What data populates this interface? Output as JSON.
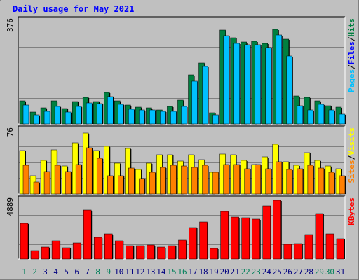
{
  "chart_data": {
    "type": "bar",
    "title": "Daily usage for May 2021",
    "x_labels": [
      "1",
      "2",
      "3",
      "4",
      "5",
      "6",
      "7",
      "8",
      "9",
      "10",
      "11",
      "12",
      "13",
      "14",
      "15",
      "16",
      "17",
      "18",
      "19",
      "20",
      "21",
      "22",
      "23",
      "24",
      "25",
      "26",
      "27",
      "28",
      "29",
      "30",
      "31"
    ],
    "weekend_days": [
      1,
      2,
      8,
      9,
      15,
      16,
      22,
      23,
      29,
      30
    ],
    "panels": [
      {
        "id": "hits_files_pages",
        "max_label": "376",
        "axis_max": 376,
        "legend": [
          "Pages",
          "Files",
          "Hits"
        ],
        "legend_colors": [
          "#00c0ff",
          "#0000ff",
          "#008040"
        ],
        "series": [
          {
            "name": "Hits",
            "color": "#008040",
            "values": [
              85,
              44,
              59,
              84,
              56,
              81,
              96,
              82,
              115,
              84,
              70,
              61,
              58,
              51,
              63,
              86,
              180,
              223,
              42,
              343,
              315,
              300,
              301,
              293,
              345,
              309,
              103,
              97,
              85,
              66,
              61
            ]
          },
          {
            "name": "Pages",
            "color": "#00c0ff",
            "values": [
              69,
              32,
              46,
              63,
              44,
              65,
              77,
              74,
              99,
              71,
              53,
              52,
              51,
              45,
              47,
              63,
              156,
              211,
              32,
              323,
              294,
              290,
              289,
              279,
              326,
              249,
              66,
              51,
              72,
              51,
              35
            ]
          }
        ]
      },
      {
        "id": "visits_sites",
        "max_label": "76",
        "axis_max": 76,
        "legend": [
          "Sites",
          "Visits"
        ],
        "legend_colors": [
          "#ff8000",
          "#ffff00"
        ],
        "series": [
          {
            "name": "Visits",
            "color": "#ffff00",
            "values": [
              52,
              22,
              40,
              53,
              33,
              61,
              73,
              52,
              57,
              37,
              54,
              29,
              37,
              47,
              47,
              39,
              47,
              41,
              26,
              48,
              47,
              40,
              35,
              44,
              59,
              38,
              34,
              49,
              40,
              33,
              30
            ]
          },
          {
            "name": "Sites",
            "color": "#ff8000",
            "values": [
              34,
              14,
              27,
              34,
              27,
              35,
              55,
              43,
              22,
              22,
              31,
              18,
              26,
              32,
              34,
              33,
              32,
              34,
              26,
              35,
              35,
              30,
              35,
              30,
              38,
              29,
              30,
              34,
              31,
              26,
              22
            ]
          }
        ]
      },
      {
        "id": "kbytes",
        "max_label": "4889",
        "axis_max": 4889,
        "legend": [
          "KBytes"
        ],
        "legend_colors": [
          "#ff0000"
        ],
        "series": [
          {
            "name": "KBytes",
            "color": "#ff0000",
            "values": [
              2940,
              680,
              1000,
              1500,
              950,
              1350,
              4080,
              1800,
              2080,
              1520,
              1080,
              1080,
              1180,
              1000,
              1120,
              1550,
              2620,
              3080,
              870,
              3940,
              3520,
              3420,
              3300,
              4400,
              4880,
              1250,
              1300,
              2030,
              3780,
              2110,
              1710
            ]
          }
        ]
      }
    ]
  }
}
